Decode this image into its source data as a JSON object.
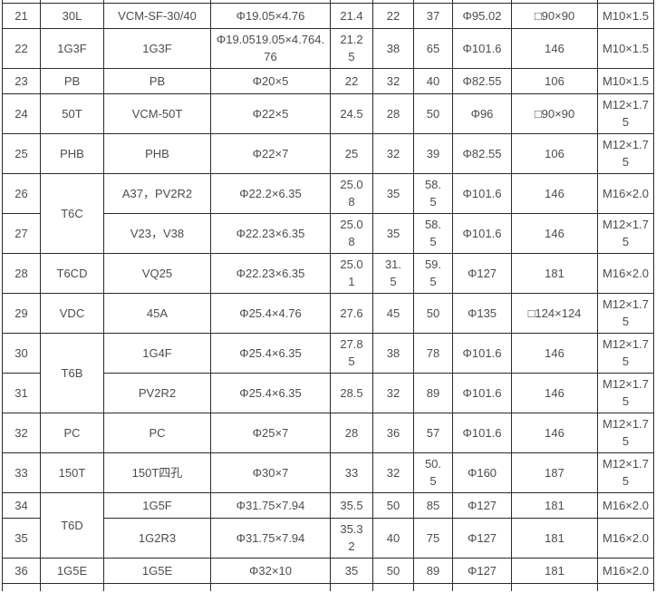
{
  "colors": {
    "background": "#ffffff",
    "border": "#2b2b2b",
    "text": "#484d53"
  },
  "table": {
    "rows": [
      {
        "cells": [
          "21",
          "30L",
          "VCM-SF-30/40",
          "Φ19.05×4.76",
          "21.4",
          "22",
          "37",
          "Φ95.02",
          "□90×90",
          "M10×1.5"
        ]
      },
      {
        "cells": [
          "22",
          "1G3F",
          "1G3F",
          "Φ19.0519.05×4.764.\n76",
          "21.2\n5",
          "38",
          "65",
          "Φ101.6",
          "146",
          "M10×1.5"
        ]
      },
      {
        "cells": [
          "23",
          "PB",
          "PB",
          "Φ20×5",
          "22",
          "32",
          "40",
          "Φ82.55",
          "106",
          "M10×1.5"
        ]
      },
      {
        "cells": [
          "24",
          "50T",
          "VCM-50T",
          "Φ22×5",
          "24.5",
          "28",
          "50",
          "Φ96",
          "□90×90",
          "M12×1.7\n5"
        ]
      },
      {
        "cells": [
          "25",
          "PHB",
          "PHB",
          "Φ22×7",
          "25",
          "32",
          "39",
          "Φ82.55",
          "106",
          "M12×1.7\n5"
        ]
      },
      {
        "cells": [
          "26",
          {
            "t": "T6C",
            "rowspan": 2
          },
          "A37，PV2R2",
          "Φ22.2×6.35",
          "25.0\n8",
          "35",
          "58.\n5",
          "Φ101.6",
          "146",
          "M16×2.0"
        ]
      },
      {
        "cells": [
          "27",
          "V23，V38",
          "Φ22.23×6.35",
          "25.0\n8",
          "35",
          "58.\n5",
          "Φ101.6",
          "146",
          "M12×1.7\n5"
        ]
      },
      {
        "cells": [
          "28",
          "T6CD",
          "VQ25",
          "Φ22.23×6.35",
          "25.0\n1",
          "31.\n5",
          "59.\n5",
          "Φ127",
          "181",
          "M16×2.0"
        ]
      },
      {
        "cells": [
          "29",
          "VDC",
          "45A",
          "Φ25.4×4.76",
          "27.6",
          "45",
          "50",
          "Φ135",
          "□124×124",
          "M12×1.7\n5"
        ]
      },
      {
        "cells": [
          "30",
          {
            "t": "T6B",
            "rowspan": 2
          },
          "1G4F",
          "Φ25.4×6.35",
          "27.8\n5",
          "38",
          "78",
          "Φ101.6",
          "146",
          "M12×1.7\n5"
        ]
      },
      {
        "cells": [
          "31",
          "PV2R2",
          "Φ25.4×6.35",
          "28.5",
          "32",
          "89",
          "Φ101.6",
          "146",
          "M12×1.7\n5"
        ]
      },
      {
        "cells": [
          "32",
          "PC",
          "PC",
          "Φ25×7",
          "28",
          "36",
          "57",
          "Φ101.6",
          "146",
          "M12×1.7\n5"
        ]
      },
      {
        "cells": [
          "33",
          "150T",
          "150T四孔",
          "Φ30×7",
          "33",
          "32",
          "50.\n5",
          "Φ160",
          "187",
          "M12×1.7\n5"
        ]
      },
      {
        "cells": [
          "34",
          {
            "t": "T6D",
            "rowspan": 2
          },
          "1G5F",
          "Φ31.75×7.94",
          "35.5",
          "50",
          "85",
          "Φ127",
          "181",
          "M16×2.0"
        ]
      },
      {
        "cells": [
          "35",
          "1G2R3",
          "Φ31.75×7.94",
          "35.3\n2",
          "40",
          "75",
          "Φ127",
          "181",
          "M16×2.0"
        ]
      },
      {
        "cells": [
          "36",
          "1G5E",
          "1G5E",
          "Φ32×10",
          "35",
          "50",
          "89",
          "Φ127",
          "181",
          "M16×2.0"
        ]
      }
    ]
  }
}
